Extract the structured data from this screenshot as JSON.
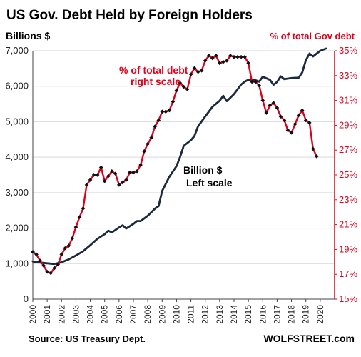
{
  "chart_data": {
    "type": "line",
    "title": "US Gov. Debt Held by Foreign Holders",
    "left_axis_label": "Billions $",
    "right_axis_label": "% of total Gov debt",
    "left_ticks": [
      "0",
      "1,000",
      "2,000",
      "3,000",
      "4,000",
      "5,000",
      "6,000",
      "7,000"
    ],
    "right_ticks": [
      "15%",
      "17%",
      "19%",
      "21%",
      "23%",
      "25%",
      "27%",
      "29%",
      "31%",
      "33%",
      "35%"
    ],
    "x_ticks": [
      "2000",
      "2001",
      "2002",
      "2003",
      "2004",
      "2005",
      "2006",
      "2007",
      "2008",
      "2009",
      "2010",
      "2011",
      "2012",
      "2013",
      "2014",
      "2015",
      "2016",
      "2017",
      "2018",
      "2019",
      "2020"
    ],
    "ylim_left": [
      0,
      7000
    ],
    "ylim_right": [
      15,
      35
    ],
    "xlim": [
      2000,
      2021
    ],
    "grid": "horizontal",
    "colors": {
      "billions": "#1c2a3d",
      "percent": "#e0001b",
      "marker": "#111111"
    },
    "annotations": {
      "percent_line1": "% of total debt",
      "percent_line2": "right scale",
      "billion_line1": "Billion $",
      "billion_line2": "Left scale"
    },
    "series": [
      {
        "key": "billions",
        "axis": "left",
        "points": [
          [
            2000.0,
            1060
          ],
          [
            2000.5,
            1030
          ],
          [
            2001.0,
            1010
          ],
          [
            2001.5,
            990
          ],
          [
            2002.0,
            1040
          ],
          [
            2002.5,
            1120
          ],
          [
            2003.0,
            1230
          ],
          [
            2003.5,
            1350
          ],
          [
            2004.0,
            1520
          ],
          [
            2004.5,
            1700
          ],
          [
            2005.0,
            1830
          ],
          [
            2005.25,
            1930
          ],
          [
            2005.5,
            1880
          ],
          [
            2006.0,
            2020
          ],
          [
            2006.25,
            2080
          ],
          [
            2006.5,
            1990
          ],
          [
            2007.0,
            2120
          ],
          [
            2007.25,
            2200
          ],
          [
            2007.5,
            2200
          ],
          [
            2008.0,
            2350
          ],
          [
            2008.5,
            2550
          ],
          [
            2008.75,
            2620
          ],
          [
            2009.0,
            3050
          ],
          [
            2009.5,
            3450
          ],
          [
            2010.0,
            3750
          ],
          [
            2010.25,
            4010
          ],
          [
            2010.5,
            4320
          ],
          [
            2011.0,
            4480
          ],
          [
            2011.25,
            4600
          ],
          [
            2011.5,
            4870
          ],
          [
            2012.0,
            5150
          ],
          [
            2012.5,
            5420
          ],
          [
            2013.0,
            5590
          ],
          [
            2013.25,
            5730
          ],
          [
            2013.5,
            5580
          ],
          [
            2014.0,
            5780
          ],
          [
            2014.5,
            6050
          ],
          [
            2014.75,
            6130
          ],
          [
            2015.0,
            6180
          ],
          [
            2015.5,
            6170
          ],
          [
            2015.75,
            6130
          ],
          [
            2016.0,
            6270
          ],
          [
            2016.5,
            6180
          ],
          [
            2016.75,
            6040
          ],
          [
            2017.0,
            6120
          ],
          [
            2017.25,
            6280
          ],
          [
            2017.5,
            6200
          ],
          [
            2018.0,
            6230
          ],
          [
            2018.5,
            6240
          ],
          [
            2018.75,
            6390
          ],
          [
            2019.0,
            6730
          ],
          [
            2019.25,
            6920
          ],
          [
            2019.5,
            6840
          ],
          [
            2020.0,
            7000
          ],
          [
            2020.4,
            7060
          ]
        ]
      },
      {
        "key": "percent",
        "axis": "right",
        "points": [
          [
            2000.0,
            18.8
          ],
          [
            2000.25,
            18.6
          ],
          [
            2000.5,
            18.1
          ],
          [
            2000.75,
            17.7
          ],
          [
            2001.0,
            17.2
          ],
          [
            2001.25,
            17.1
          ],
          [
            2001.5,
            17.5
          ],
          [
            2001.75,
            17.8
          ],
          [
            2002.0,
            18.6
          ],
          [
            2002.25,
            19.1
          ],
          [
            2002.5,
            19.3
          ],
          [
            2002.75,
            19.9
          ],
          [
            2003.0,
            20.8
          ],
          [
            2003.25,
            21.6
          ],
          [
            2003.5,
            22.3
          ],
          [
            2003.75,
            24.2
          ],
          [
            2004.0,
            24.6
          ],
          [
            2004.25,
            25.0
          ],
          [
            2004.5,
            25.0
          ],
          [
            2004.75,
            25.6
          ],
          [
            2005.0,
            24.5
          ],
          [
            2005.25,
            24.9
          ],
          [
            2005.5,
            25.3
          ],
          [
            2005.75,
            25.1
          ],
          [
            2006.0,
            24.2
          ],
          [
            2006.25,
            24.4
          ],
          [
            2006.5,
            24.6
          ],
          [
            2006.75,
            25.2
          ],
          [
            2007.0,
            25.2
          ],
          [
            2007.25,
            25.3
          ],
          [
            2007.5,
            25.8
          ],
          [
            2007.75,
            26.9
          ],
          [
            2008.0,
            27.5
          ],
          [
            2008.25,
            28.0
          ],
          [
            2008.5,
            28.9
          ],
          [
            2008.75,
            29.4
          ],
          [
            2009.0,
            30.1
          ],
          [
            2009.25,
            30.1
          ],
          [
            2009.5,
            30.2
          ],
          [
            2009.75,
            30.9
          ],
          [
            2010.0,
            31.8
          ],
          [
            2010.25,
            32.4
          ],
          [
            2010.5,
            32.1
          ],
          [
            2010.75,
            31.9
          ],
          [
            2011.0,
            33.1
          ],
          [
            2011.25,
            33.6
          ],
          [
            2011.5,
            33.3
          ],
          [
            2011.75,
            33.4
          ],
          [
            2012.0,
            34.2
          ],
          [
            2012.25,
            34.6
          ],
          [
            2012.5,
            34.4
          ],
          [
            2012.75,
            34.6
          ],
          [
            2013.0,
            34.0
          ],
          [
            2013.25,
            34.1
          ],
          [
            2013.5,
            34.2
          ],
          [
            2013.75,
            34.6
          ],
          [
            2014.0,
            34.5
          ],
          [
            2014.25,
            34.5
          ],
          [
            2014.5,
            34.5
          ],
          [
            2014.75,
            34.5
          ],
          [
            2015.0,
            34.0
          ],
          [
            2015.25,
            32.5
          ],
          [
            2015.5,
            32.5
          ],
          [
            2015.75,
            32.2
          ],
          [
            2016.0,
            31.0
          ],
          [
            2016.25,
            30.0
          ],
          [
            2016.5,
            30.6
          ],
          [
            2016.75,
            30.8
          ],
          [
            2017.0,
            30.4
          ],
          [
            2017.25,
            29.7
          ],
          [
            2017.5,
            29.4
          ],
          [
            2017.75,
            28.6
          ],
          [
            2018.0,
            28.4
          ],
          [
            2018.25,
            29.1
          ],
          [
            2018.5,
            29.8
          ],
          [
            2018.75,
            30.2
          ],
          [
            2019.0,
            29.4
          ],
          [
            2019.25,
            29.2
          ],
          [
            2019.5,
            27.1
          ],
          [
            2019.75,
            26.5
          ]
        ]
      }
    ]
  },
  "footer": {
    "source": "Source: US Treasury Dept.",
    "brand": "WOLFSTREET.com"
  }
}
